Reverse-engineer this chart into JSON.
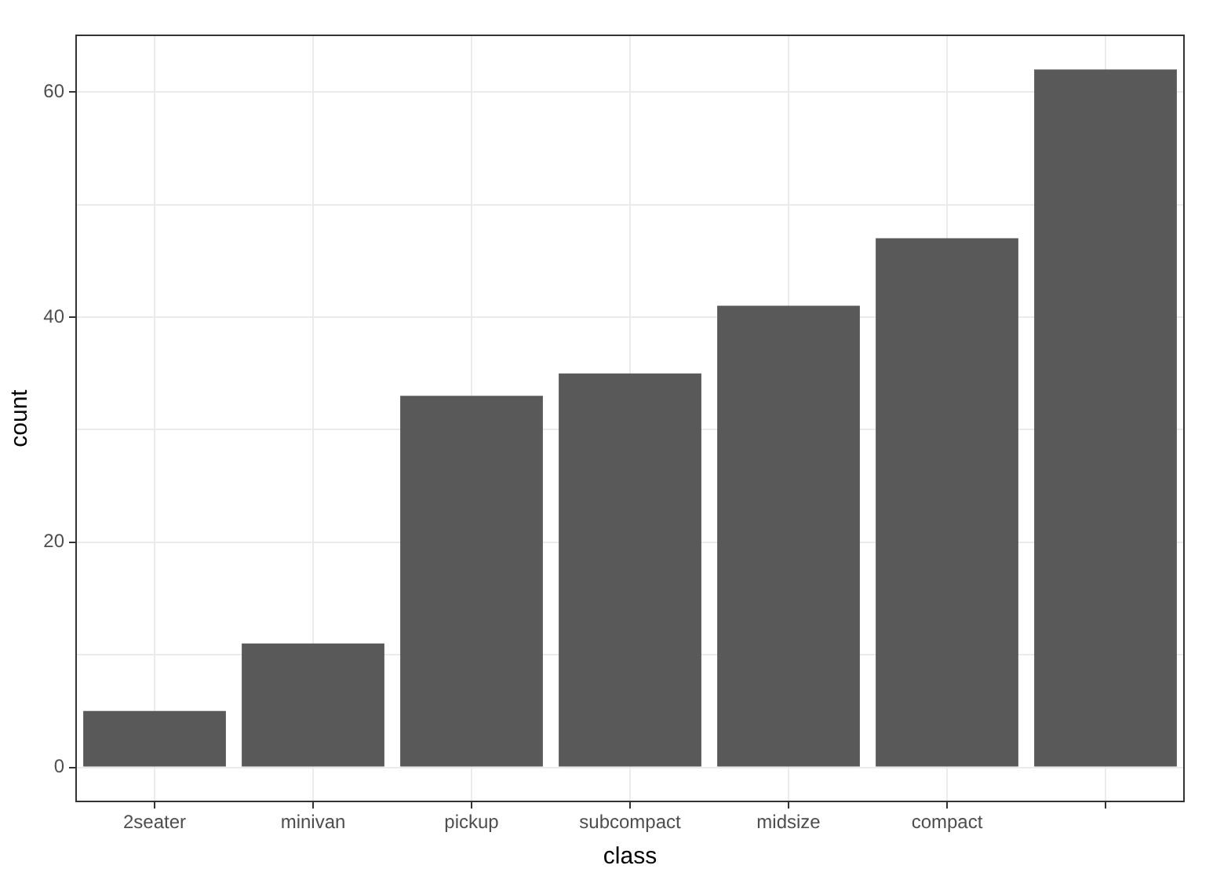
{
  "chart_data": {
    "type": "bar",
    "categories": [
      "2seater",
      "minivan",
      "pickup",
      "subcompact",
      "midsize",
      "compact",
      null
    ],
    "values": [
      5,
      11,
      33,
      35,
      41,
      47,
      62
    ],
    "color": "#595959",
    "xlabel": "class",
    "ylabel": "count",
    "ylim": [
      -3.1,
      65.1
    ],
    "yticks": [
      0,
      {
        "value": 10,
        "label": null
      },
      20,
      {
        "value": 30,
        "label": null
      },
      40,
      {
        "value": 50,
        "label": null
      },
      60
    ],
    "grid": true
  }
}
